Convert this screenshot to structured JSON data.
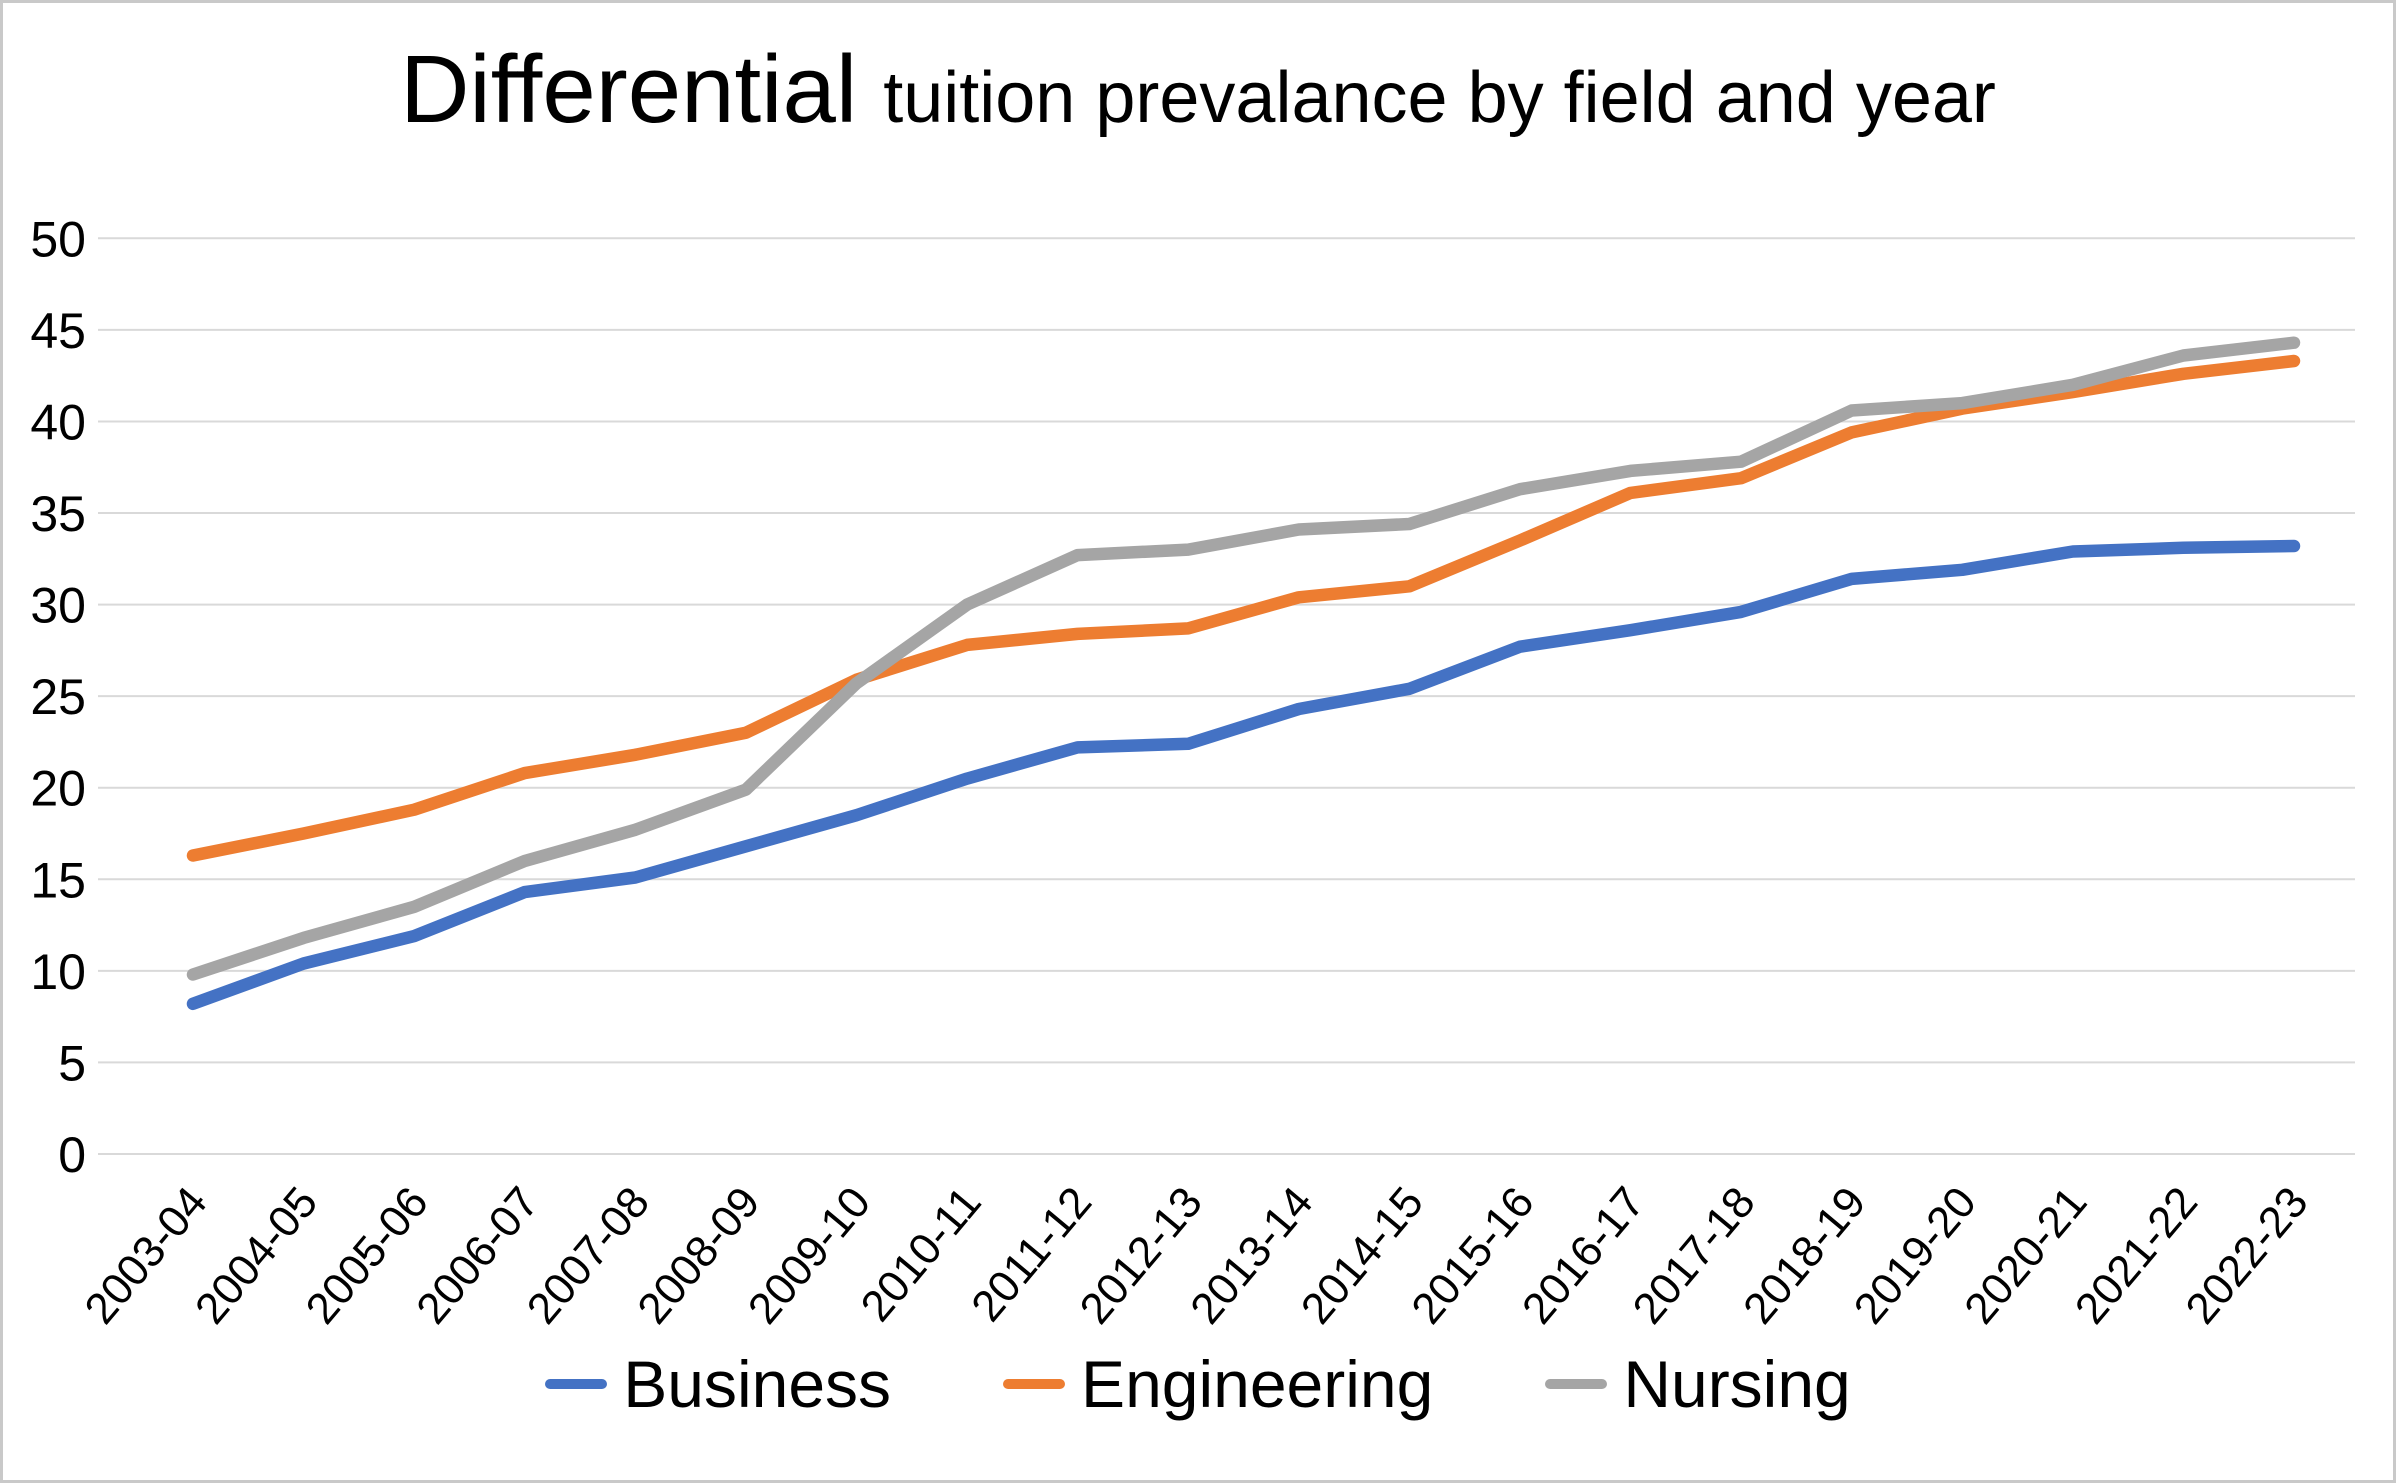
{
  "title": {
    "emphasis": "Differential",
    "rest": "tuition prevalance by field and year"
  },
  "chart_data": {
    "type": "line",
    "title": "Differential tuition prevalance by field and year",
    "xlabel": "",
    "ylabel": "",
    "ylim": [
      0,
      50
    ],
    "ytick_step": 5,
    "yticks": [
      0,
      5,
      10,
      15,
      20,
      25,
      30,
      35,
      40,
      45,
      50
    ],
    "grid": "horizontal",
    "gridline_color": "#D9D9D9",
    "legend_position": "bottom",
    "categories": [
      "2003-04",
      "2004-05",
      "2005-06",
      "2006-07",
      "2007-08",
      "2008-09",
      "2009-10",
      "2010-11",
      "2011-12",
      "2012-13",
      "2013-14",
      "2014-15",
      "2015-16",
      "2016-17",
      "2017-18",
      "2018-19",
      "2019-20",
      "2020-21",
      "2021-22",
      "2022-23"
    ],
    "series": [
      {
        "name": "Business",
        "color": "#4472C4",
        "values": [
          8.2,
          10.4,
          11.9,
          14.3,
          15.1,
          16.8,
          18.5,
          20.5,
          22.2,
          22.4,
          24.3,
          25.4,
          27.7,
          28.6,
          29.6,
          31.4,
          31.9,
          32.9,
          33.1,
          33.2
        ]
      },
      {
        "name": "Engineering",
        "color": "#ED7D31",
        "values": [
          16.3,
          17.5,
          18.8,
          20.8,
          21.8,
          23.0,
          25.9,
          27.8,
          28.4,
          28.7,
          30.4,
          31.0,
          33.5,
          36.1,
          36.9,
          39.4,
          40.7,
          41.6,
          42.6,
          43.3
        ]
      },
      {
        "name": "Nursing",
        "color": "#A5A5A5",
        "values": [
          9.8,
          11.8,
          13.5,
          16.0,
          17.7,
          19.9,
          25.7,
          30.0,
          32.7,
          33.0,
          34.1,
          34.4,
          36.3,
          37.3,
          37.8,
          40.6,
          41.0,
          42.0,
          43.6,
          44.3
        ]
      }
    ]
  },
  "colors": {
    "background": "#FFFFFF",
    "frame_border": "#C9C9C9",
    "gridline": "#D9D9D9",
    "text": "#000000"
  }
}
